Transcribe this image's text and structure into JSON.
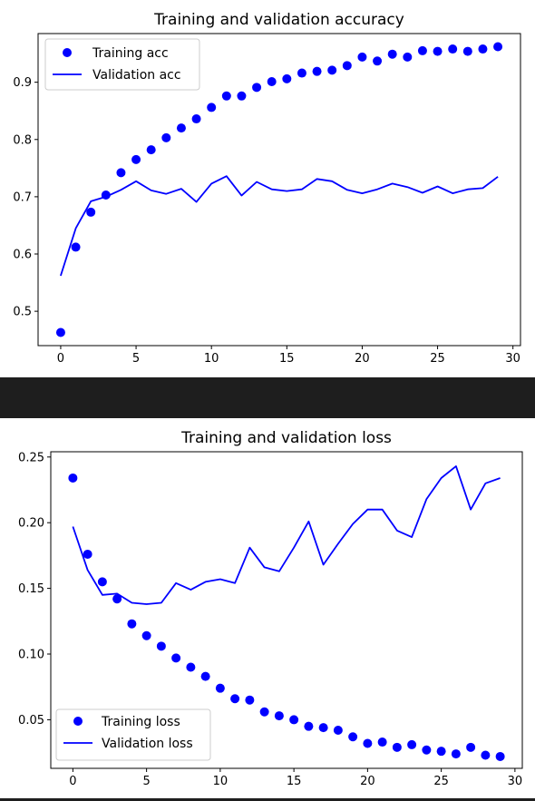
{
  "chart_data": [
    {
      "id": "acc",
      "type": "line",
      "title": "Training and validation accuracy",
      "xlabel": "",
      "ylabel": "",
      "xlim": [
        -1.5,
        30.5
      ],
      "ylim": [
        0.44,
        0.985
      ],
      "xticks": [
        0,
        5,
        10,
        15,
        20,
        25,
        30
      ],
      "yticks": [
        0.5,
        0.6,
        0.7,
        0.8,
        0.9
      ],
      "ytick_labels": [
        "0.5",
        "0.6",
        "0.7",
        "0.8",
        "0.9"
      ],
      "grid": false,
      "legend_position": "top-left",
      "x": [
        0,
        1,
        2,
        3,
        4,
        5,
        6,
        7,
        8,
        9,
        10,
        11,
        12,
        13,
        14,
        15,
        16,
        17,
        18,
        19,
        20,
        21,
        22,
        23,
        24,
        25,
        26,
        27,
        28,
        29
      ],
      "series": [
        {
          "name": "Training acc",
          "style": "points",
          "color": "#0000ff",
          "values": [
            0.463,
            0.612,
            0.673,
            0.703,
            0.742,
            0.765,
            0.782,
            0.803,
            0.82,
            0.836,
            0.856,
            0.876,
            0.876,
            0.891,
            0.901,
            0.906,
            0.916,
            0.919,
            0.921,
            0.929,
            0.944,
            0.937,
            0.949,
            0.944,
            0.955,
            0.954,
            0.958,
            0.954,
            0.958,
            0.962
          ]
        },
        {
          "name": "Validation acc",
          "style": "line",
          "color": "#0000ff",
          "values": [
            0.562,
            0.645,
            0.692,
            0.7,
            0.712,
            0.727,
            0.711,
            0.705,
            0.714,
            0.691,
            0.723,
            0.736,
            0.702,
            0.726,
            0.713,
            0.71,
            0.713,
            0.731,
            0.727,
            0.712,
            0.706,
            0.713,
            0.723,
            0.717,
            0.707,
            0.718,
            0.706,
            0.713,
            0.715,
            0.735
          ]
        }
      ]
    },
    {
      "id": "loss",
      "type": "line",
      "title": "Training and validation loss",
      "xlabel": "",
      "ylabel": "",
      "xlim": [
        -1.5,
        30.5
      ],
      "ylim": [
        0.013,
        0.254
      ],
      "xticks": [
        0,
        5,
        10,
        15,
        20,
        25,
        30
      ],
      "yticks": [
        0.05,
        0.1,
        0.15,
        0.2,
        0.25
      ],
      "ytick_labels": [
        "0.05",
        "0.10",
        "0.15",
        "0.20",
        "0.25"
      ],
      "grid": false,
      "legend_position": "bottom-left",
      "x": [
        0,
        1,
        2,
        3,
        4,
        5,
        6,
        7,
        8,
        9,
        10,
        11,
        12,
        13,
        14,
        15,
        16,
        17,
        18,
        19,
        20,
        21,
        22,
        23,
        24,
        25,
        26,
        27,
        28,
        29
      ],
      "series": [
        {
          "name": "Training loss",
          "style": "points",
          "color": "#0000ff",
          "values": [
            0.234,
            0.176,
            0.155,
            0.142,
            0.123,
            0.114,
            0.106,
            0.097,
            0.09,
            0.083,
            0.074,
            0.066,
            0.065,
            0.056,
            0.053,
            0.05,
            0.045,
            0.044,
            0.042,
            0.037,
            0.032,
            0.033,
            0.029,
            0.031,
            0.027,
            0.026,
            0.024,
            0.029,
            0.023,
            0.022
          ]
        },
        {
          "name": "Validation loss",
          "style": "line",
          "color": "#0000ff",
          "values": [
            0.197,
            0.164,
            0.145,
            0.146,
            0.139,
            0.138,
            0.139,
            0.154,
            0.149,
            0.155,
            0.157,
            0.154,
            0.181,
            0.166,
            0.163,
            0.181,
            0.201,
            0.168,
            0.184,
            0.199,
            0.21,
            0.21,
            0.194,
            0.189,
            0.218,
            0.234,
            0.243,
            0.21,
            0.23,
            0.234
          ]
        }
      ]
    }
  ]
}
